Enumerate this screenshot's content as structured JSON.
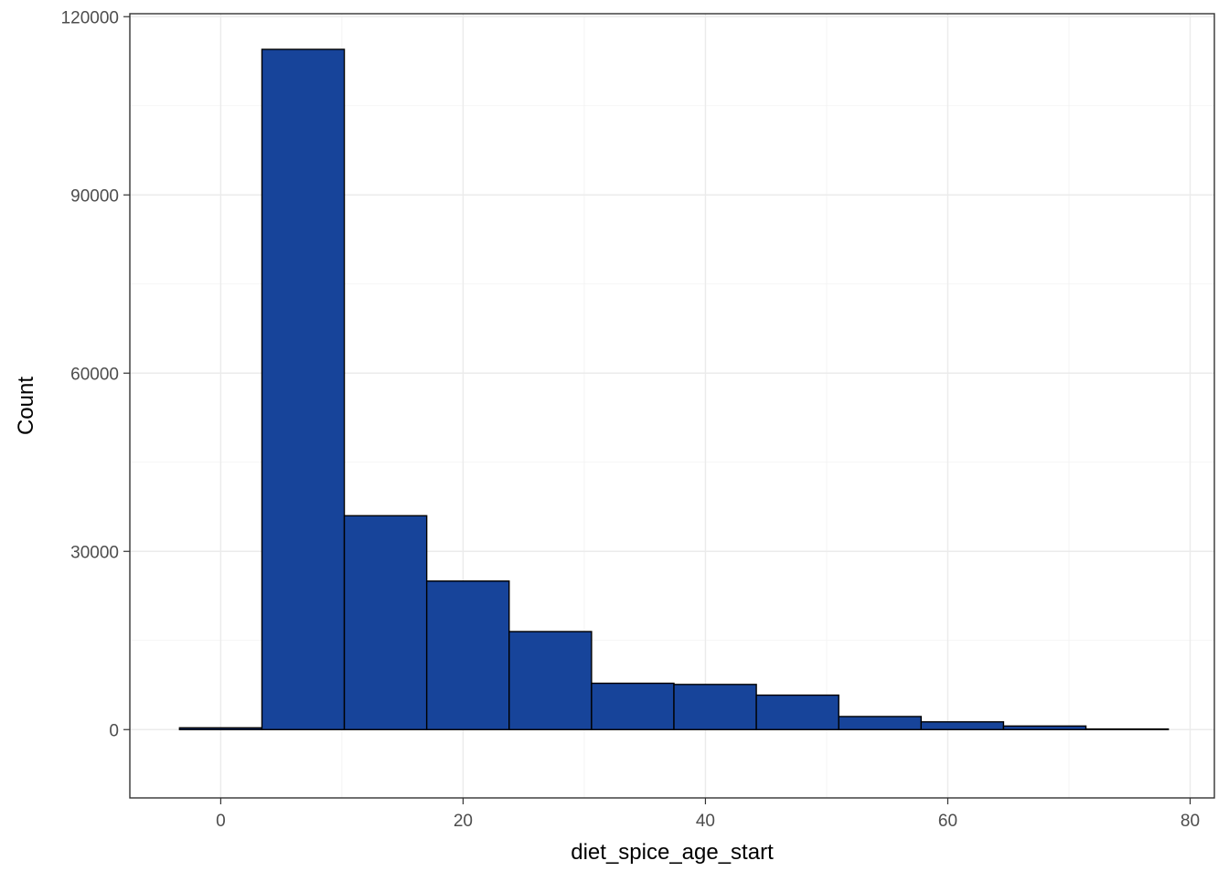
{
  "chart_data": {
    "type": "bar",
    "subtype": "histogram",
    "title": "",
    "xlabel": "diet_spice_age_start",
    "ylabel": "Count",
    "xlim": [
      -7.5,
      82
    ],
    "ylim": [
      -11500,
      120500
    ],
    "x_ticks": [
      0,
      20,
      40,
      60,
      80
    ],
    "y_ticks": [
      0,
      30000,
      60000,
      90000,
      120000
    ],
    "x_tick_labels": [
      "0",
      "20",
      "40",
      "60",
      "80"
    ],
    "y_tick_labels": [
      "0",
      "30000",
      "60000",
      "90000",
      "120000"
    ],
    "bin_edges": [
      -3.4,
      3.4,
      10.2,
      17.0,
      23.8,
      30.6,
      37.4,
      44.2,
      51.0,
      57.8,
      64.6,
      71.4,
      78.2
    ],
    "counts": [
      300,
      114500,
      36000,
      25000,
      16500,
      7800,
      7600,
      5800,
      2200,
      1300,
      600,
      100
    ],
    "grid": true,
    "legend": "none",
    "colors": {
      "bar_fill": "#17449A",
      "bar_stroke": "#000000",
      "grid": "#EBEBEB",
      "panel_border": "#333333"
    }
  }
}
